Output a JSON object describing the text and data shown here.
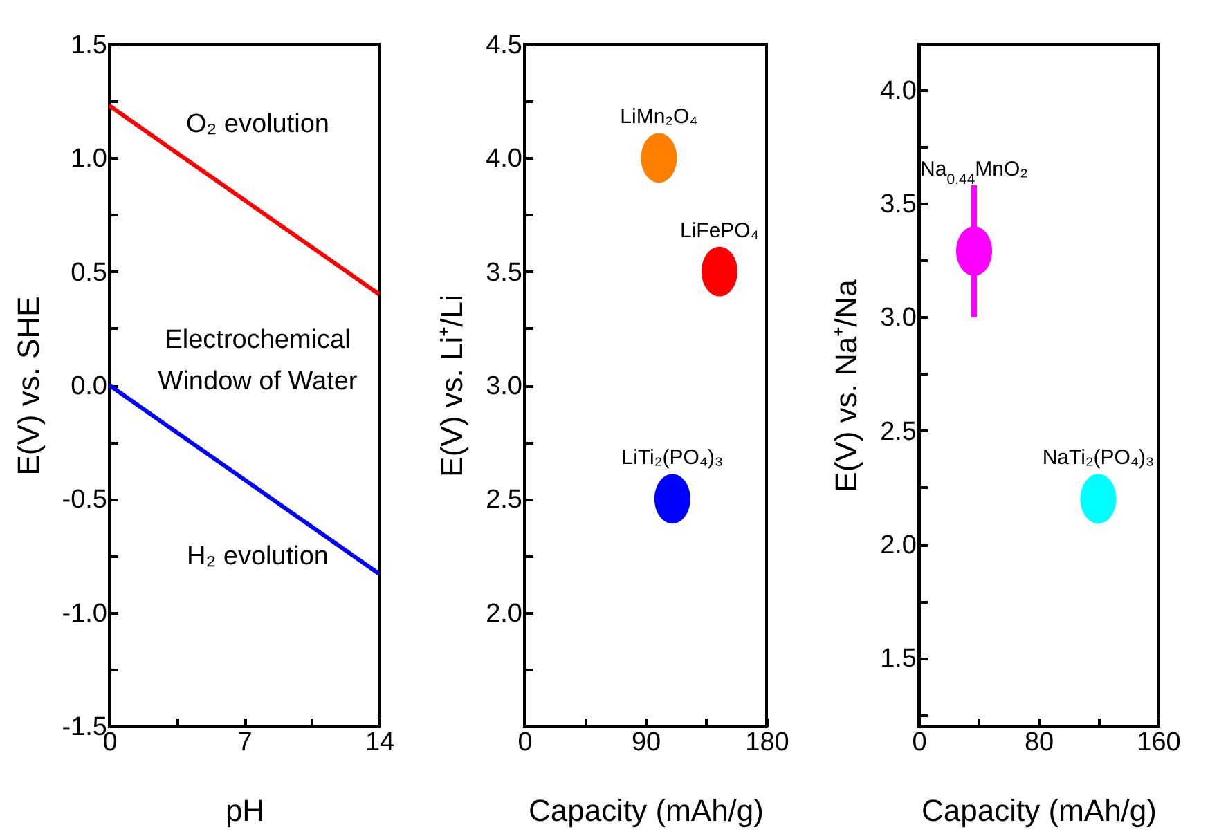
{
  "chart_data": [
    {
      "type": "line",
      "xlabel": "pH",
      "ylabel": "E(V) vs. SHE",
      "xlim": [
        0,
        14
      ],
      "ylim": [
        -1.5,
        1.5
      ],
      "xticks": [
        0,
        {
          "value": 3.5,
          "label": null
        },
        7,
        {
          "value": 10.5,
          "label": null
        },
        14
      ],
      "yticks": [
        -1.5,
        {
          "value": -1.25,
          "label": null
        },
        {
          "value": -1,
          "label": "-1.0"
        },
        {
          "value": -0.75,
          "label": null
        },
        -0.5,
        {
          "value": -0.25,
          "label": null
        },
        {
          "value": 0,
          "label": "0.0"
        },
        {
          "value": 0.25,
          "label": null
        },
        0.5,
        {
          "value": 0.75,
          "label": null
        },
        {
          "value": 1,
          "label": "1.0"
        },
        {
          "value": 1.25,
          "label": null
        },
        1.5
      ],
      "series": [
        {
          "color": "#ff0000",
          "x": [
            0,
            14
          ],
          "values": [
            1.23,
            0.4
          ]
        },
        {
          "color": "#0000ff",
          "x": [
            0,
            14
          ],
          "values": [
            0,
            -0.83
          ]
        }
      ],
      "annotations": [
        "O₂ evolution",
        "Electrochemical\nWindow of Water",
        "H₂ evolution"
      ],
      "legend": false,
      "grid": false
    },
    {
      "type": "scatter",
      "xlabel": "Capacity (mAh/g)",
      "ylabel": "E(V) vs. Li⁺/Li",
      "xlim": [
        0,
        180
      ],
      "ylim": [
        1.5,
        4.5
      ],
      "xticks": [
        0,
        {
          "value": 45,
          "label": null
        },
        90,
        {
          "value": 135,
          "label": null
        },
        180
      ],
      "yticks": [
        {
          "value": 1.75,
          "label": null
        },
        {
          "value": 2,
          "label": "2.0"
        },
        {
          "value": 2.25,
          "label": null
        },
        2.5,
        {
          "value": 2.75,
          "label": null
        },
        {
          "value": 3,
          "label": "3.0"
        },
        {
          "value": 3.25,
          "label": null
        },
        3.5,
        {
          "value": 3.75,
          "label": null
        },
        {
          "value": 4,
          "label": "4.0"
        },
        {
          "value": 4.25,
          "label": null
        },
        4.5
      ],
      "series": [
        {
          "name": "LiMn₂O₄",
          "color": "#ff8000",
          "x": [
            100
          ],
          "values": [
            4.0
          ]
        },
        {
          "name": "LiFePO₄",
          "color": "#ff0000",
          "x": [
            145
          ],
          "values": [
            3.5
          ]
        },
        {
          "name": "LiTi₂(PO₄)₃",
          "color": "#0000ff",
          "x": [
            110
          ],
          "values": [
            2.5
          ]
        }
      ],
      "legend": false,
      "grid": false
    },
    {
      "type": "scatter",
      "xlabel": "Capacity (mAh/g)",
      "ylabel": "E(V) vs. Na⁺/Na",
      "xlim": [
        0,
        160
      ],
      "ylim": [
        1.2,
        4.2
      ],
      "xticks": [
        0,
        {
          "value": 40,
          "label": null
        },
        80,
        {
          "value": 120,
          "label": null
        },
        160
      ],
      "yticks": [
        {
          "value": 1.25,
          "label": null
        },
        1.5,
        {
          "value": 1.75,
          "label": null
        },
        {
          "value": 2,
          "label": "2.0"
        },
        {
          "value": 2.25,
          "label": null
        },
        2.5,
        {
          "value": 2.75,
          "label": null
        },
        {
          "value": 3,
          "label": "3.0"
        },
        {
          "value": 3.25,
          "label": null
        },
        3.5,
        {
          "value": 3.75,
          "label": null
        },
        {
          "value": 4,
          "label": "4.0"
        }
      ],
      "series": [
        {
          "name": "Na$_{0.44}$MnO₂",
          "color": "#ff00ff",
          "x": [
            37
          ],
          "values": [
            3.29
          ],
          "errors": [
            [
              3.0,
              3.58
            ]
          ]
        },
        {
          "name": "NaTi₂(PO₄)₃",
          "color": "#00ffff",
          "x": [
            120
          ],
          "values": [
            2.2
          ]
        }
      ],
      "legend": false,
      "grid": false
    }
  ]
}
